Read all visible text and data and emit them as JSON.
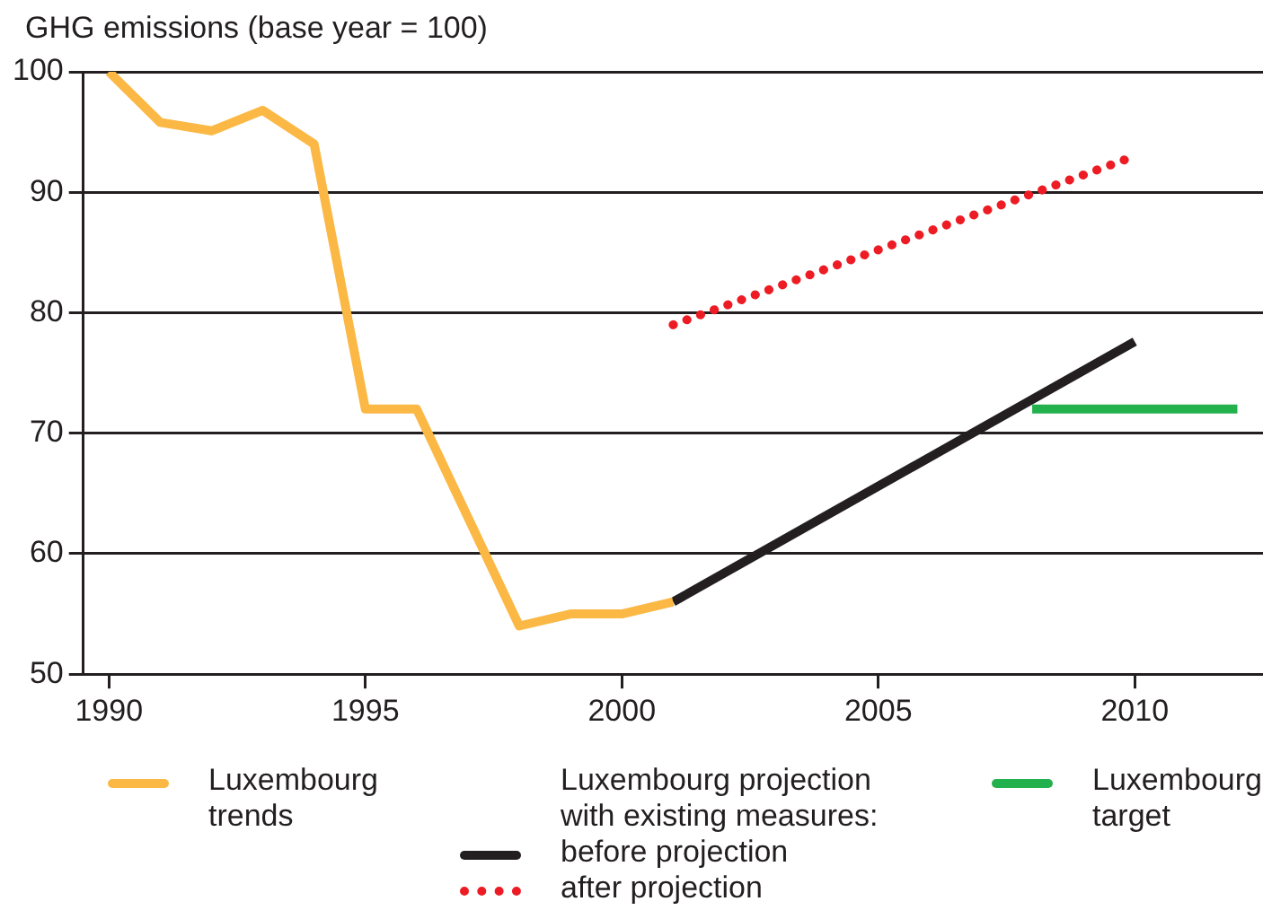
{
  "chart_data": {
    "type": "line",
    "ylabel": "GHG emissions (base year = 100)",
    "legend_title": "Luxembourg projection with existing measures:",
    "xlim": [
      1989.5,
      2012.5
    ],
    "xticks": [
      1990,
      1995,
      2000,
      2005,
      2010
    ],
    "ylim": [
      50,
      100
    ],
    "yticks": [
      50,
      60,
      70,
      80,
      90,
      100
    ],
    "grid": "y",
    "legend": "bottom",
    "marker": "none",
    "series": [
      {
        "name": "Luxembourg trends",
        "color": "#fbb845",
        "x": [
          1990,
          1991,
          1992,
          1993,
          1994,
          1995,
          1996,
          1997,
          1998,
          1999,
          2000,
          2001
        ],
        "values": [
          100,
          95.8,
          95.1,
          96.8,
          94,
          72,
          72,
          63,
          54,
          55,
          55,
          56
        ],
        "line_style": "solid"
      },
      {
        "name": "before projection",
        "color": "#231f20",
        "x": [
          2001,
          2010
        ],
        "values": [
          56,
          77.6
        ],
        "line_style": "solid"
      },
      {
        "name": "after projection",
        "color": "#ed1c24",
        "x": [
          2001,
          2010
        ],
        "values": [
          79,
          93
        ],
        "line_style": "dotted"
      },
      {
        "name": "Luxembourg target",
        "color": "#22b14c",
        "x": [
          2008,
          2012
        ],
        "values": [
          72,
          72
        ],
        "line_style": "solid"
      }
    ]
  }
}
